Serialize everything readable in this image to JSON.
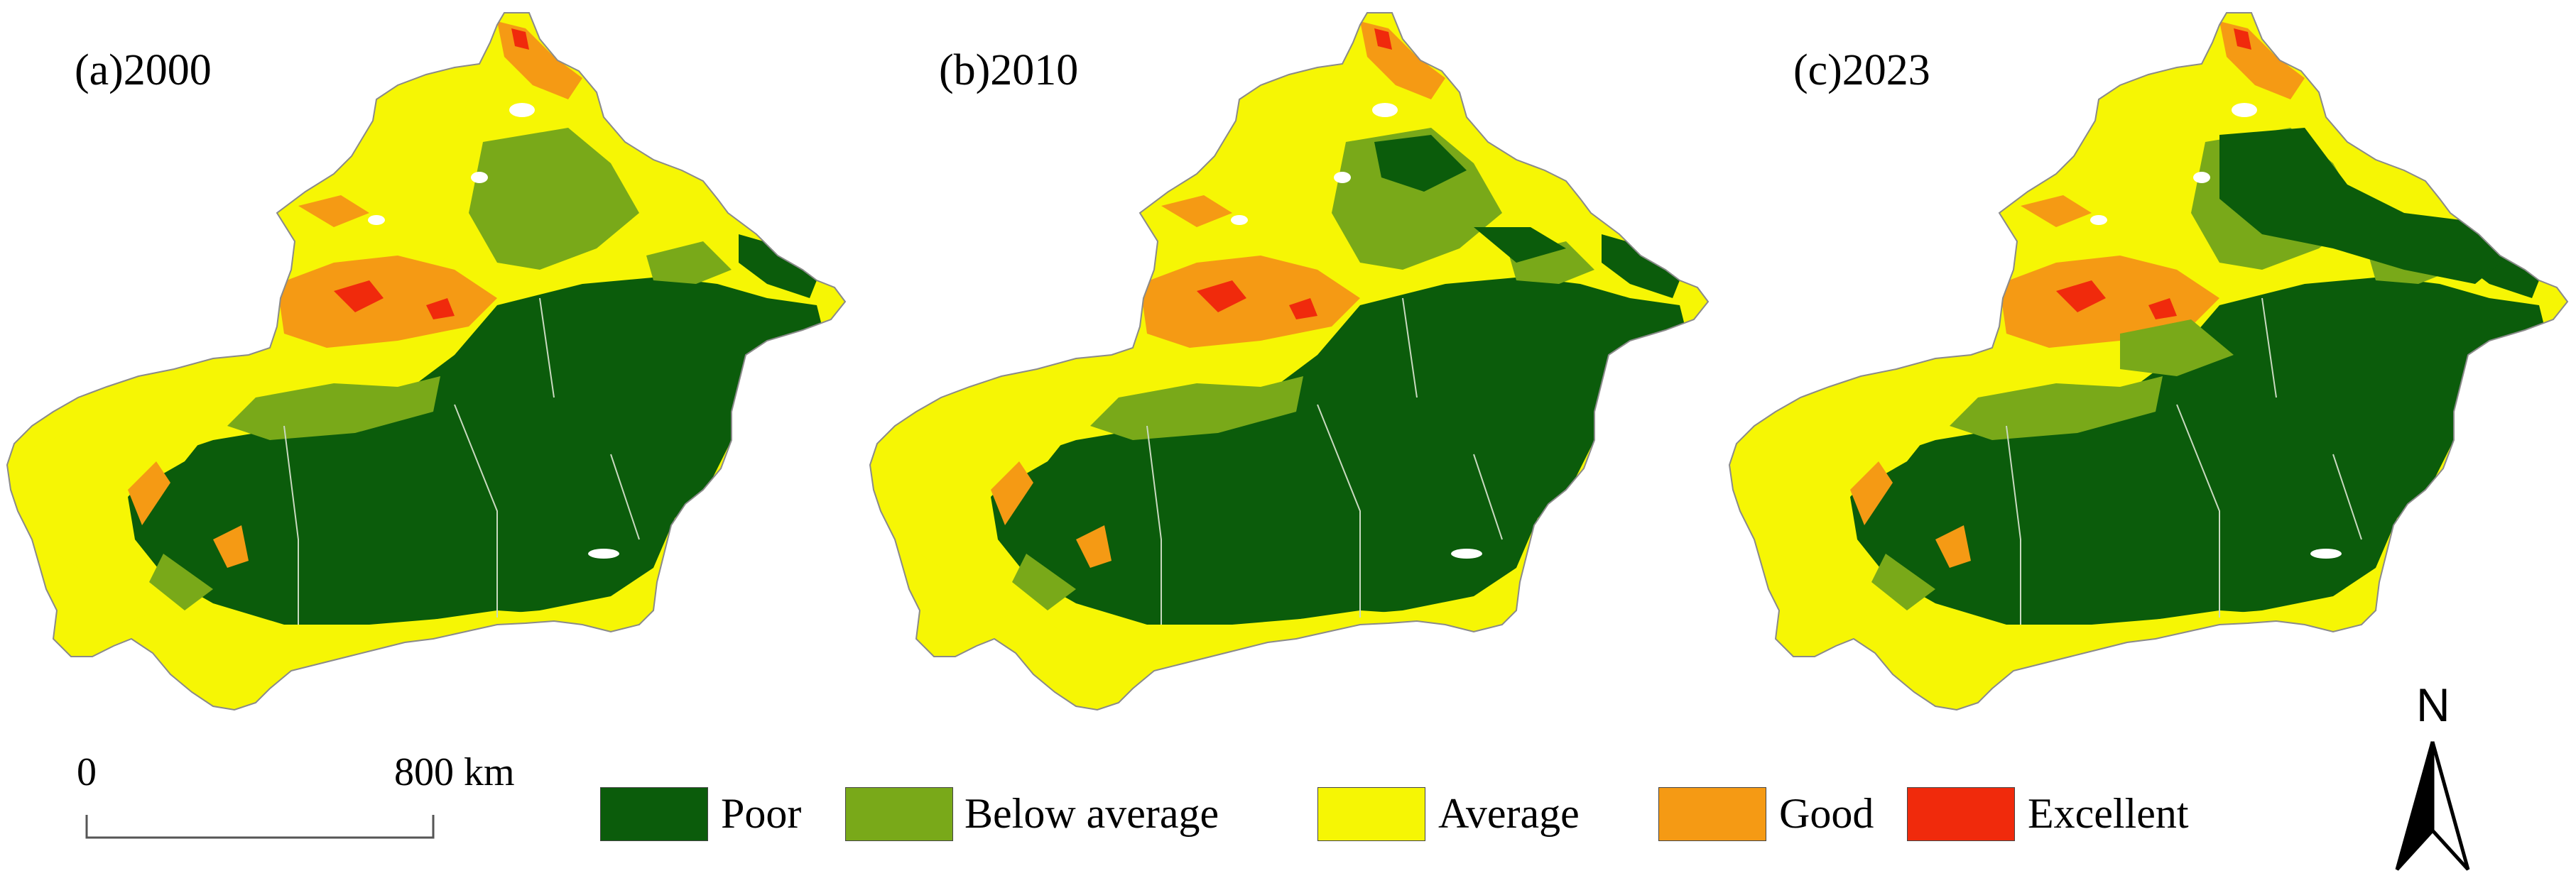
{
  "panels": [
    {
      "title": "(a)2000"
    },
    {
      "title": "(b)2010"
    },
    {
      "title": "(c)2023"
    }
  ],
  "scale_bar": {
    "start_label": "0",
    "end_label": "800 km"
  },
  "legend": {
    "items": [
      {
        "label": "Poor",
        "color": "#0b5c0b"
      },
      {
        "label": "Below average",
        "color": "#79a919"
      },
      {
        "label": "Average",
        "color": "#f6f604"
      },
      {
        "label": "Good",
        "color": "#f59a14"
      },
      {
        "label": "Excellent",
        "color": "#f02a0c"
      }
    ]
  },
  "north_arrow": {
    "label": "N",
    "icon": "north-arrow-icon"
  }
}
